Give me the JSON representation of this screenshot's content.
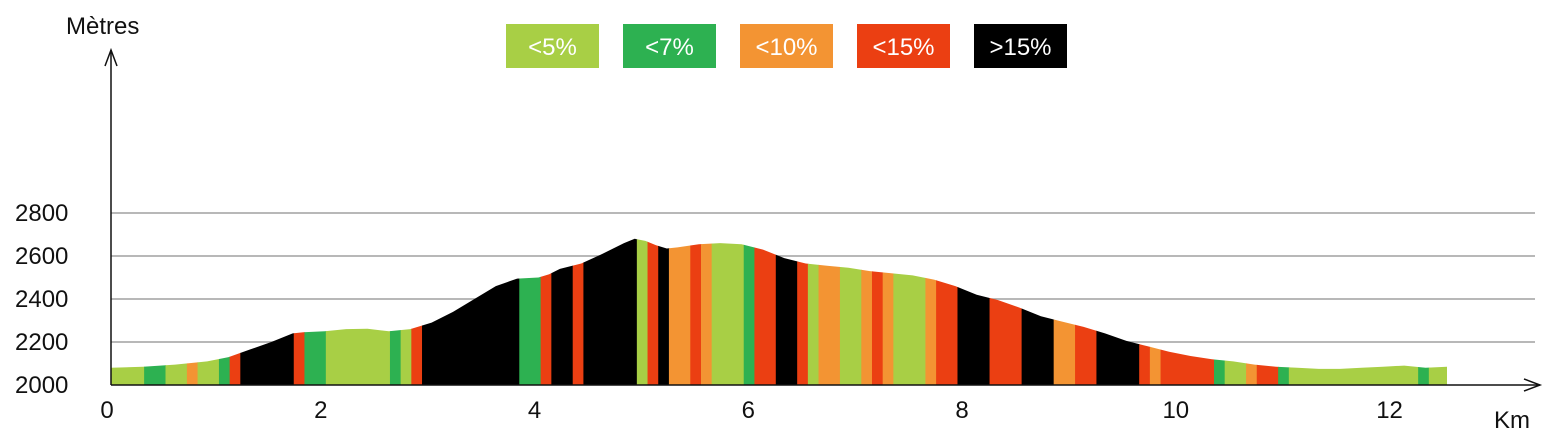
{
  "chart_data": {
    "type": "area",
    "title": "",
    "ylabel": "Mètres",
    "xlabel": "Km",
    "xlim": [
      0,
      12.5
    ],
    "ylim": [
      2000,
      2800
    ],
    "xticks": [
      0,
      2,
      4,
      6,
      8,
      10,
      12
    ],
    "yticks": [
      2000,
      2200,
      2400,
      2600,
      2800
    ],
    "grid_lines": [
      2200,
      2400,
      2600,
      2800
    ],
    "grid": true,
    "legend_position": "top-center",
    "legend": [
      {
        "label": "<5%",
        "color": "#a8cf45"
      },
      {
        "label": "<7%",
        "color": "#2db151"
      },
      {
        "label": "<10%",
        "color": "#f39433"
      },
      {
        "label": "<15%",
        "color": "#eb3f12"
      },
      {
        "label": ">15%",
        "color": "#000000"
      }
    ],
    "profile": {
      "x": [
        0,
        0.3,
        0.6,
        0.9,
        1.1,
        1.3,
        1.5,
        1.7,
        1.8,
        2.0,
        2.2,
        2.4,
        2.6,
        2.8,
        3.0,
        3.2,
        3.4,
        3.6,
        3.8,
        4.0,
        4.1,
        4.2,
        4.4,
        4.6,
        4.8,
        4.9,
        5.0,
        5.1,
        5.2,
        5.3,
        5.5,
        5.7,
        5.9,
        6.1,
        6.3,
        6.5,
        6.7,
        6.9,
        7.1,
        7.3,
        7.5,
        7.7,
        7.9,
        8.1,
        8.3,
        8.5,
        8.7,
        8.9,
        9.1,
        9.3,
        9.5,
        9.7,
        9.9,
        10.1,
        10.3,
        10.5,
        10.7,
        10.9,
        11.1,
        11.3,
        11.5,
        11.7,
        11.9,
        12.1,
        12.3,
        12.5
      ],
      "y": [
        2080,
        2085,
        2095,
        2110,
        2130,
        2165,
        2200,
        2240,
        2245,
        2250,
        2260,
        2262,
        2250,
        2260,
        2290,
        2340,
        2400,
        2460,
        2495,
        2500,
        2515,
        2540,
        2565,
        2610,
        2660,
        2680,
        2670,
        2650,
        2635,
        2640,
        2655,
        2660,
        2655,
        2630,
        2590,
        2565,
        2555,
        2545,
        2530,
        2520,
        2510,
        2490,
        2460,
        2420,
        2395,
        2360,
        2320,
        2295,
        2270,
        2240,
        2205,
        2180,
        2155,
        2135,
        2120,
        2110,
        2095,
        2085,
        2080,
        2075,
        2075,
        2080,
        2085,
        2090,
        2080,
        2085
      ]
    },
    "segments": [
      {
        "from": 0.0,
        "to": 0.31,
        "slope": "<5%"
      },
      {
        "from": 0.31,
        "to": 0.51,
        "slope": "<7%"
      },
      {
        "from": 0.51,
        "to": 0.71,
        "slope": "<5%"
      },
      {
        "from": 0.71,
        "to": 0.81,
        "slope": "<10%"
      },
      {
        "from": 0.81,
        "to": 1.01,
        "slope": "<5%"
      },
      {
        "from": 1.01,
        "to": 1.11,
        "slope": "<7%"
      },
      {
        "from": 1.11,
        "to": 1.21,
        "slope": "<15%"
      },
      {
        "from": 1.21,
        "to": 1.71,
        "slope": ">15%"
      },
      {
        "from": 1.71,
        "to": 1.81,
        "slope": "<15%"
      },
      {
        "from": 1.81,
        "to": 2.01,
        "slope": "<7%"
      },
      {
        "from": 2.01,
        "to": 2.61,
        "slope": "<5%"
      },
      {
        "from": 2.61,
        "to": 2.71,
        "slope": "<7%"
      },
      {
        "from": 2.71,
        "to": 2.81,
        "slope": "<5%"
      },
      {
        "from": 2.81,
        "to": 2.91,
        "slope": "<15%"
      },
      {
        "from": 2.91,
        "to": 3.82,
        "slope": ">15%"
      },
      {
        "from": 3.82,
        "to": 4.02,
        "slope": "<7%"
      },
      {
        "from": 4.02,
        "to": 4.12,
        "slope": "<15%"
      },
      {
        "from": 4.12,
        "to": 4.32,
        "slope": ">15%"
      },
      {
        "from": 4.32,
        "to": 4.42,
        "slope": "<15%"
      },
      {
        "from": 4.42,
        "to": 4.92,
        "slope": ">15%"
      },
      {
        "from": 4.92,
        "to": 5.02,
        "slope": "<5%"
      },
      {
        "from": 5.02,
        "to": 5.12,
        "slope": "<15%"
      },
      {
        "from": 5.12,
        "to": 5.22,
        "slope": ">15%"
      },
      {
        "from": 5.22,
        "to": 5.42,
        "slope": "<10%"
      },
      {
        "from": 5.42,
        "to": 5.52,
        "slope": "<15%"
      },
      {
        "from": 5.52,
        "to": 5.62,
        "slope": "<10%"
      },
      {
        "from": 5.62,
        "to": 5.92,
        "slope": "<5%"
      },
      {
        "from": 5.92,
        "to": 6.02,
        "slope": "<7%"
      },
      {
        "from": 6.02,
        "to": 6.22,
        "slope": "<15%"
      },
      {
        "from": 6.22,
        "to": 6.42,
        "slope": ">15%"
      },
      {
        "from": 6.42,
        "to": 6.52,
        "slope": "<15%"
      },
      {
        "from": 6.52,
        "to": 6.62,
        "slope": "<5%"
      },
      {
        "from": 6.62,
        "to": 6.82,
        "slope": "<10%"
      },
      {
        "from": 6.82,
        "to": 7.02,
        "slope": "<5%"
      },
      {
        "from": 7.02,
        "to": 7.12,
        "slope": "<10%"
      },
      {
        "from": 7.12,
        "to": 7.22,
        "slope": "<15%"
      },
      {
        "from": 7.22,
        "to": 7.32,
        "slope": "<10%"
      },
      {
        "from": 7.32,
        "to": 7.62,
        "slope": "<5%"
      },
      {
        "from": 7.62,
        "to": 7.72,
        "slope": "<10%"
      },
      {
        "from": 7.72,
        "to": 7.92,
        "slope": "<15%"
      },
      {
        "from": 7.92,
        "to": 8.22,
        "slope": ">15%"
      },
      {
        "from": 8.22,
        "to": 8.52,
        "slope": "<15%"
      },
      {
        "from": 8.52,
        "to": 8.82,
        "slope": ">15%"
      },
      {
        "from": 8.82,
        "to": 9.02,
        "slope": "<10%"
      },
      {
        "from": 9.02,
        "to": 9.22,
        "slope": "<15%"
      },
      {
        "from": 9.22,
        "to": 9.62,
        "slope": ">15%"
      },
      {
        "from": 9.62,
        "to": 9.72,
        "slope": "<15%"
      },
      {
        "from": 9.72,
        "to": 9.82,
        "slope": "<10%"
      },
      {
        "from": 9.82,
        "to": 10.32,
        "slope": "<15%"
      },
      {
        "from": 10.32,
        "to": 10.42,
        "slope": "<7%"
      },
      {
        "from": 10.42,
        "to": 10.62,
        "slope": "<5%"
      },
      {
        "from": 10.62,
        "to": 10.72,
        "slope": "<10%"
      },
      {
        "from": 10.72,
        "to": 10.92,
        "slope": "<15%"
      },
      {
        "from": 10.92,
        "to": 11.02,
        "slope": "<7%"
      },
      {
        "from": 11.02,
        "to": 12.23,
        "slope": "<5%"
      },
      {
        "from": 12.23,
        "to": 12.33,
        "slope": "<7%"
      },
      {
        "from": 12.33,
        "to": 12.5,
        "slope": "<5%"
      }
    ]
  }
}
